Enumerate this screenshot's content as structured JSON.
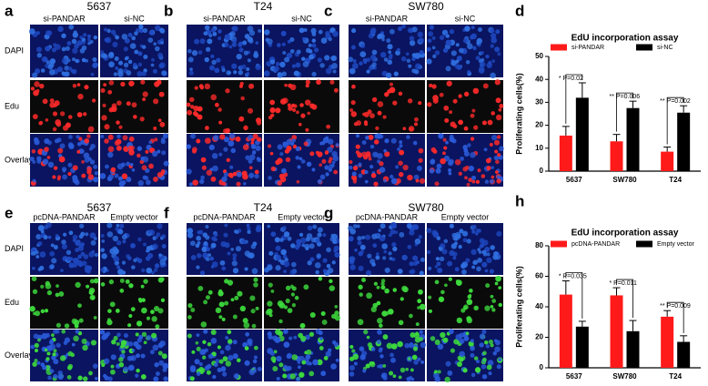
{
  "figure_panels": [
    {
      "letter": "a",
      "title": "5637",
      "columns": [
        "si-PANDAR",
        "si-NC"
      ],
      "rows": [
        "DAPI",
        "Edu",
        "Overlay"
      ]
    },
    {
      "letter": "b",
      "title": "T24",
      "columns": [
        "si-PANDAR",
        "si-NC"
      ]
    },
    {
      "letter": "c",
      "title": "SW780",
      "columns": [
        "si-PANDAR",
        "si-NC"
      ]
    },
    {
      "letter": "e",
      "title": "5637",
      "columns": [
        "pcDNA-PANDAR",
        "Empty vector"
      ],
      "rows": [
        "DAPI",
        "Edu",
        "Overlay"
      ]
    },
    {
      "letter": "f",
      "title": "T24",
      "columns": [
        "pcDNA-PANDAR",
        "Empty vector"
      ]
    },
    {
      "letter": "g",
      "title": "SW780",
      "columns": [
        "pcDNA-PANDAR",
        "Empty vector"
      ]
    }
  ],
  "chart_data": [
    {
      "type": "bar",
      "panel_letter": "d",
      "title": "EdU incorporation assay",
      "y_label": "Proliferating cells(%)",
      "categories": [
        "5637",
        "SW780",
        "T24"
      ],
      "series": [
        {
          "name": "si-PANDAR",
          "color": "#ff1a1a",
          "values": [
            15.5,
            13,
            8.5
          ],
          "errors": [
            4,
            3,
            2
          ]
        },
        {
          "name": "si-NC",
          "color": "#000000",
          "values": [
            32,
            27.5,
            25.5
          ],
          "errors": [
            6.5,
            3,
            3
          ]
        }
      ],
      "annotations": [
        "* P=0.02",
        "** P=0.006",
        "** P=0.002"
      ],
      "ylim": [
        0,
        50
      ],
      "yticks": [
        0,
        10,
        20,
        30,
        40,
        50
      ]
    },
    {
      "type": "bar",
      "panel_letter": "h",
      "title": "EdU incorporation assay",
      "y_label": "Proliferating cells(%)",
      "categories": [
        "5637",
        "SW780",
        "T24"
      ],
      "series": [
        {
          "name": "pcDNA-PANDAR",
          "color": "#ff1a1a",
          "values": [
            48,
            47.5,
            33.5
          ],
          "errors": [
            9,
            5,
            4
          ]
        },
        {
          "name": "Empty vector",
          "color": "#000000",
          "values": [
            27,
            24,
            17
          ],
          "errors": [
            3.5,
            7,
            4
          ]
        }
      ],
      "annotations": [
        "* P=0.035",
        "* P=0.011",
        "** P=0.009"
      ],
      "ylim": [
        0,
        80
      ],
      "yticks": [
        0,
        20,
        40,
        60,
        80
      ]
    }
  ]
}
